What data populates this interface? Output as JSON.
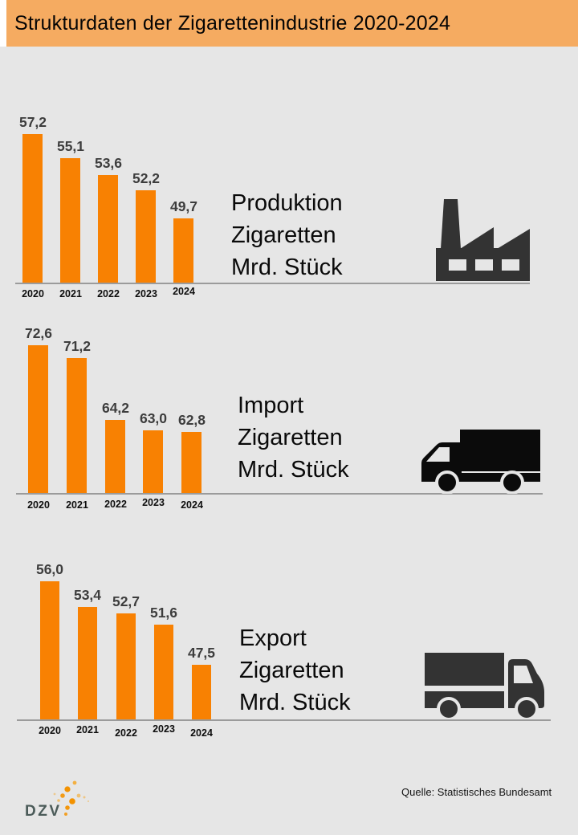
{
  "header": {
    "title": "Strukturdaten der Zigarettenindustrie 2020-2024",
    "bg_color": "#f5ab61"
  },
  "colors": {
    "bar_orange": "#f88102",
    "background_grey": "#e6e6e6",
    "header_orange": "#f5ab61",
    "icon_dark": "#333333",
    "icon_black": "#0b0b0b",
    "logo_green": "#4b5b59",
    "logo_dot_orange": "#f39200"
  },
  "charts": [
    {
      "id": "produktion",
      "label_lines": [
        "Produktion",
        "Zigaretten",
        "Mrd. Stück"
      ],
      "icon": "factory-icon",
      "years": [
        "2020",
        "2021",
        "2022",
        "2023",
        "2024"
      ],
      "display_values": [
        "57,2",
        "55,1",
        "53,6",
        "52,2",
        "49,7"
      ],
      "values": [
        57.2,
        55.1,
        53.6,
        52.2,
        49.7
      ]
    },
    {
      "id": "import",
      "label_lines": [
        "Import",
        "Zigaretten",
        "Mrd. Stück"
      ],
      "icon": "truck-left-icon",
      "years": [
        "2020",
        "2021",
        "2022",
        "2023",
        "2024"
      ],
      "display_values": [
        "72,6",
        "71,2",
        "64,2",
        "63,0",
        "62,8"
      ],
      "values": [
        72.6,
        71.2,
        64.2,
        63.0,
        62.8
      ]
    },
    {
      "id": "export",
      "label_lines": [
        "Export",
        "Zigaretten",
        "Mrd. Stück"
      ],
      "icon": "truck-right-icon",
      "years": [
        "2020",
        "2021",
        "2022",
        "2023",
        "2024"
      ],
      "display_values": [
        "56,0",
        "53,4",
        "52,7",
        "51,6",
        "47,5"
      ],
      "values": [
        56.0,
        53.4,
        52.7,
        51.6,
        47.5
      ]
    }
  ],
  "footer": {
    "source": "Quelle: Statistisches Bundesamt",
    "logo_text": "DZV"
  },
  "chart_data": [
    {
      "type": "bar",
      "title": "Produktion Zigaretten",
      "ylabel": "Mrd. Stück",
      "categories": [
        "2020",
        "2021",
        "2022",
        "2023",
        "2024"
      ],
      "values": [
        57.2,
        55.1,
        53.6,
        52.2,
        49.7
      ],
      "bar_color": "#f88102",
      "data_labels": true,
      "axis_baseline_not_zero": true,
      "legend": "none"
    },
    {
      "type": "bar",
      "title": "Import Zigaretten",
      "ylabel": "Mrd. Stück",
      "categories": [
        "2020",
        "2021",
        "2022",
        "2023",
        "2024"
      ],
      "values": [
        72.6,
        71.2,
        64.2,
        63.0,
        62.8
      ],
      "bar_color": "#f88102",
      "data_labels": true,
      "axis_baseline_not_zero": true,
      "legend": "none"
    },
    {
      "type": "bar",
      "title": "Export Zigaretten",
      "ylabel": "Mrd. Stück",
      "categories": [
        "2020",
        "2021",
        "2022",
        "2023",
        "2024"
      ],
      "values": [
        56.0,
        53.4,
        52.7,
        51.6,
        47.5
      ],
      "bar_color": "#f88102",
      "data_labels": true,
      "axis_baseline_not_zero": true,
      "legend": "none"
    }
  ]
}
